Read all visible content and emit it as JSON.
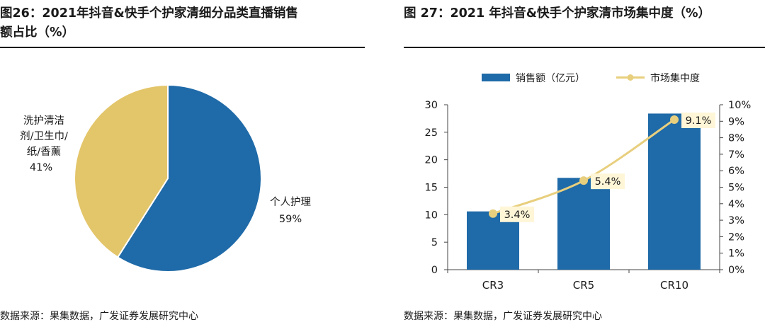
{
  "figures": [
    {
      "title_line1": "图26：2021年抖音&快手个护家清细分品类直播销售",
      "title_line2": "额占比（%）",
      "source": "数据来源：果集数据，广发证券发展研究中心"
    },
    {
      "title_line1": "图 27：2021 年抖音&快手个护家清市场集中度（%）",
      "source": "数据来源：果集数据，广发证券发展研究中心"
    }
  ],
  "colors": {
    "blue": "#1f6aa8",
    "gold": "#e3c56a",
    "line": "#e8cf7e",
    "label_bg": "#fff6d8"
  },
  "chart_data": [
    {
      "type": "pie",
      "title": "2021年抖音&快手个护家清细分品类直播销售额占比（%）",
      "slices": [
        {
          "label": "个人护理",
          "value": 59,
          "value_label": "59%"
        },
        {
          "label_lines": [
            "洗护清洁",
            "剂/卫生巾/",
            "纸/香薰"
          ],
          "label": "洗护清洁剂/卫生巾/纸/香薰",
          "value": 41,
          "value_label": "41%"
        }
      ]
    },
    {
      "type": "bar",
      "title": "2021 年抖音&快手个护家清市场集中度（%）",
      "categories": [
        "CR3",
        "CR5",
        "CR10"
      ],
      "series": [
        {
          "name": "销售额（亿元）",
          "type": "bar",
          "axis": "left",
          "values": [
            10.6,
            16.7,
            28.4
          ]
        },
        {
          "name": "市场集中度",
          "type": "line",
          "axis": "right",
          "values": [
            3.4,
            5.4,
            9.1
          ],
          "value_labels": [
            "3.4%",
            "5.4%",
            "9.1%"
          ]
        }
      ],
      "ylim": [
        0,
        30
      ],
      "yticks": [
        "0",
        "5",
        "10",
        "15",
        "20",
        "25",
        "30"
      ],
      "y2lim": [
        0,
        10
      ],
      "y2ticks": [
        "0%",
        "1%",
        "2%",
        "3%",
        "4%",
        "5%",
        "6%",
        "7%",
        "8%",
        "9%",
        "10%"
      ],
      "legend_position": "top"
    }
  ]
}
